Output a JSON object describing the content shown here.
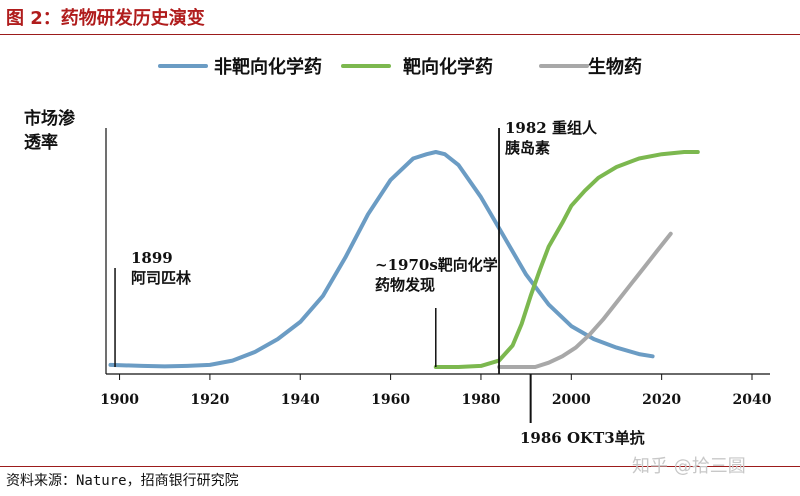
{
  "figure": {
    "title": "图 2：药物研发历史演变",
    "source": "资料来源：Nature，招商银行研究院",
    "watermark": "知乎 @拾三圆"
  },
  "chart_data": {
    "type": "line",
    "title": "",
    "xlabel": "",
    "ylabel": "市场渗透率",
    "xlim": [
      1897,
      2040
    ],
    "ylim": [
      0,
      1
    ],
    "x_ticks": [
      "1900",
      "1920",
      "1940",
      "1960",
      "1980",
      "2000",
      "2020",
      "2040"
    ],
    "y_ticks": [],
    "grid": false,
    "legend_position": "top",
    "series": [
      {
        "name": "非靶向化学药",
        "color": "#6b9cc4",
        "x": [
          1898,
          1905,
          1910,
          1915,
          1920,
          1925,
          1930,
          1935,
          1940,
          1945,
          1950,
          1955,
          1960,
          1965,
          1968,
          1970,
          1972,
          1975,
          1980,
          1985,
          1990,
          1995,
          2000,
          2005,
          2010,
          2015,
          2018
        ],
        "y": [
          0.01,
          0.005,
          0.003,
          0.005,
          0.01,
          0.03,
          0.07,
          0.13,
          0.21,
          0.33,
          0.51,
          0.71,
          0.87,
          0.97,
          0.99,
          1.0,
          0.99,
          0.94,
          0.79,
          0.61,
          0.43,
          0.29,
          0.19,
          0.13,
          0.09,
          0.06,
          0.05
        ]
      },
      {
        "name": "靶向化学药",
        "color": "#7cb84f",
        "x": [
          1970,
          1975,
          1980,
          1984,
          1987,
          1989,
          1991,
          1993,
          1995,
          1998,
          2000,
          2003,
          2006,
          2010,
          2015,
          2020,
          2025,
          2028
        ],
        "y": [
          0.0,
          0.0,
          0.005,
          0.03,
          0.1,
          0.2,
          0.33,
          0.45,
          0.56,
          0.67,
          0.75,
          0.82,
          0.88,
          0.93,
          0.97,
          0.99,
          1.0,
          1.0
        ]
      },
      {
        "name": "生物药",
        "color": "#a8a8a8",
        "x": [
          1984,
          1988,
          1992,
          1995,
          1998,
          2001,
          2004,
          2007,
          2010,
          2013,
          2016,
          2019,
          2022
        ],
        "y": [
          0.0,
          0.0,
          0.0,
          0.02,
          0.05,
          0.09,
          0.15,
          0.22,
          0.3,
          0.38,
          0.46,
          0.54,
          0.62
        ]
      }
    ],
    "annotations": [
      {
        "id": "aspirin",
        "x": 1899,
        "text_lines": [
          "1899",
          "阿司匹林"
        ]
      },
      {
        "id": "targeted",
        "x": 1970,
        "text_lines": [
          "~1970s靶向化学",
          "药物发现"
        ]
      },
      {
        "id": "insulin",
        "x": 1984,
        "text_lines": [
          "1982 重组人",
          "胰岛素"
        ]
      },
      {
        "id": "okt3",
        "x": 1991,
        "text_lines": [
          "1986 OKT3单抗"
        ]
      }
    ]
  }
}
